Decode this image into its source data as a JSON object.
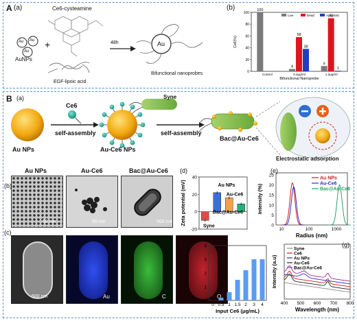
{
  "panelA": {
    "label": "A",
    "sub_a": "(a)",
    "sub_b": "(b)",
    "reagent_top": "Ce6-cysteamine",
    "reagent_bottom": "EGF-lipoic acid",
    "aunps_label": "AuNPs",
    "au_small": "Au",
    "plus": "+",
    "arrow_label": "48h",
    "center_au": "Au",
    "product_label": "Bifunctional nanoprobes",
    "chart": {
      "ylabel": "Cell(%)",
      "xlabel": "Bifunctional Nanoprobe",
      "legend": [
        "Live",
        "Dead",
        "Apoptotic"
      ]
    }
  },
  "panelB": {
    "label": "B",
    "sub_a": "(a)",
    "ce6": "Ce6",
    "self_assembly_1": "self-assembly",
    "au_nps": "Au NPs",
    "au_ce6_nps": "Au-Ce6 NPs",
    "syne": "Syne",
    "self_assembly_2": "self-assembly",
    "bac": "Bac@Au-Ce6",
    "electrostatic": "Electrostatic adsorption",
    "sub_b": "(b)",
    "sub_c": "(c)",
    "sub_d": "(d)",
    "sub_e": "(e)",
    "sub_f": "(f)",
    "sub_g": "(g)",
    "tem_titles": [
      "Au NPs",
      "Au-Ce6",
      "Bac@Au-Ce6"
    ],
    "tem_scales": [
      "50 nm",
      "50 nm",
      "500 nm"
    ],
    "map_scale": "500 nm",
    "map_labels": [
      "Au",
      "C",
      "O"
    ]
  },
  "chart_data": [
    {
      "type": "bar",
      "categories": [
        "Control",
        "0.2μg/ml",
        "1.2μg/ml"
      ],
      "series": [
        {
          "name": "Live",
          "values": [
            100,
            4,
            9
          ]
        },
        {
          "name": "Dead",
          "values": [
            0,
            58,
            90
          ]
        },
        {
          "name": "Apoptotic",
          "values": [
            0,
            38,
            1
          ]
        }
      ],
      "data_labels": {
        "Live": [
          "100",
          "4",
          "9"
        ],
        "Dead": [
          "",
          "58",
          "90"
        ],
        "Apoptotic": [
          "",
          "38",
          "1"
        ]
      },
      "ylabel": "Cell(%)",
      "xlabel": "Bifunctional Nanoprobe",
      "ylim": [
        0,
        100
      ],
      "yticks": [
        0,
        20,
        40,
        60,
        80,
        100
      ],
      "colors": {
        "Live": "#7a7a7a",
        "Dead": "#e0141e",
        "Apoptotic": "#1f3fbf"
      }
    },
    {
      "type": "bar",
      "categories": [
        "Syne",
        "Au NPs",
        "Au-Ce6",
        "Bac@Au-Ce6"
      ],
      "values": [
        -10,
        22,
        16,
        9
      ],
      "ylabel": "Zeta potential (mV)",
      "ylim": [
        -20,
        40
      ],
      "yticks": [
        -20,
        -10,
        0,
        10,
        20,
        30,
        40
      ],
      "colors": [
        "#e24a4a",
        "#3a6fd8",
        "#f5a14a",
        "#28b07a"
      ]
    },
    {
      "type": "line",
      "ylabel": "Intensity (%)",
      "xlabel": "Radius (nm)",
      "x_ticks": [
        "10",
        "100",
        "1000"
      ],
      "yticks": [
        0,
        5,
        10,
        15,
        20,
        25
      ],
      "series": [
        {
          "name": "Au NPs",
          "peak_radius": 25,
          "peak": 21,
          "color": "#d01c1c"
        },
        {
          "name": "Au-Ce6",
          "peak_radius": 28,
          "peak": 19,
          "color": "#2d2dbf"
        },
        {
          "name": "Bac@Au-Ce6",
          "peak_radius": 1300,
          "peak": 20,
          "color": "#2aa06a"
        }
      ]
    },
    {
      "type": "bar",
      "categories": [
        "0",
        "0.5",
        "1",
        "1.5",
        "2",
        "3",
        "4"
      ],
      "values": [
        0,
        0.2,
        0.6,
        1.5,
        2.2,
        3.0,
        3.0
      ],
      "xlabel": "Input Ce6 (μg/mL)",
      "ylabel": "Output Ce6 (μg/mL)",
      "ylim": [
        0,
        4
      ],
      "yticks": [
        0,
        1,
        2,
        3,
        4
      ],
      "color": "#5a9cf0"
    },
    {
      "type": "line",
      "xlabel": "Wavelength (nm)",
      "ylabel": "Intensity (a.u)",
      "x_ticks": [
        "400",
        "500",
        "600",
        "700",
        "800"
      ],
      "series": [
        {
          "name": "Syne",
          "color": "#8a8a8a"
        },
        {
          "name": "Ce6",
          "color": "#d01c1c"
        },
        {
          "name": "Au NPs",
          "color": "#2d2dbf"
        },
        {
          "name": "Au-Ce6",
          "color": "#222222"
        },
        {
          "name": "Bac@Au-Ce6",
          "color": "#9b2d9b"
        }
      ]
    }
  ]
}
